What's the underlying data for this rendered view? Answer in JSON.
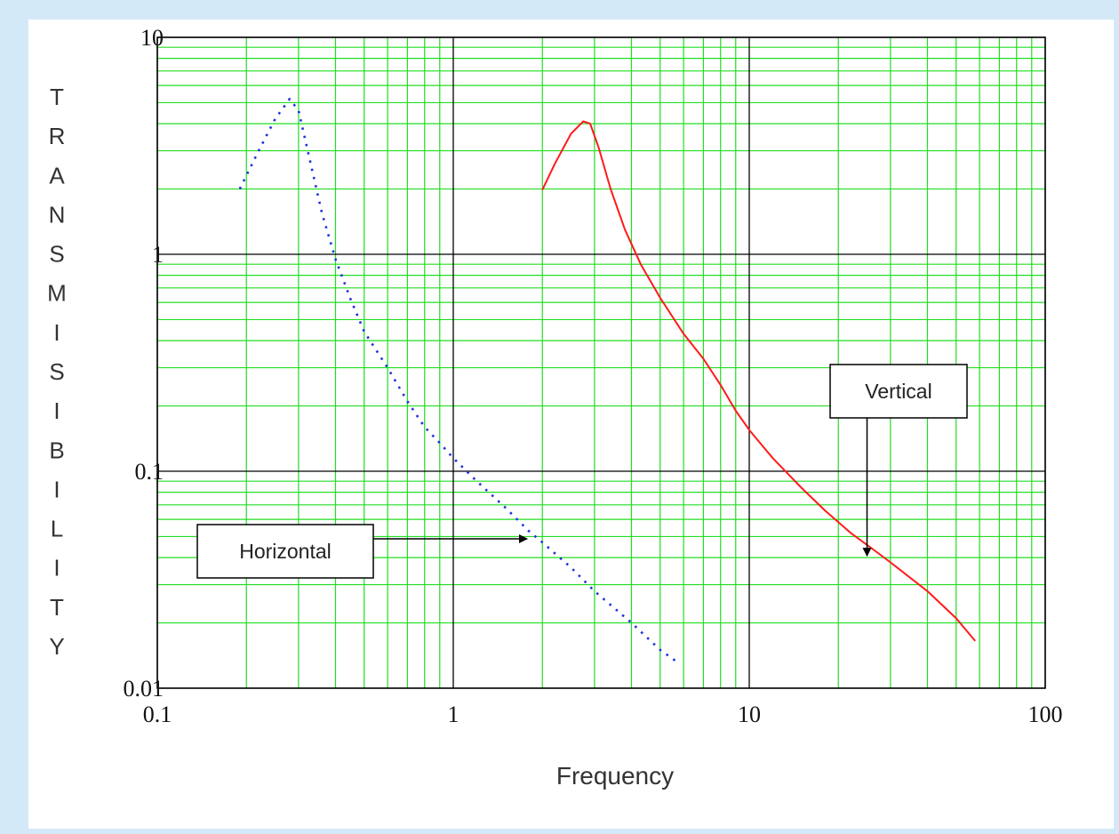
{
  "chart_data": {
    "type": "line",
    "xscale": "log",
    "yscale": "log",
    "xlim": [
      0.1,
      100
    ],
    "ylim": [
      0.01,
      10
    ],
    "x_ticks": [
      "0.1",
      "1",
      "10",
      "100"
    ],
    "y_ticks": [
      "10",
      "1",
      "0.1",
      "0.01"
    ],
    "xlabel": "Frequency",
    "ylabel": "TRANSMISIBILITY",
    "grid": true,
    "colors": {
      "minor_grid": "#22dd22",
      "major_grid": "#000000",
      "horizontal": "#1f2fe0",
      "vertical": "#ff1a1a",
      "background": "#d4e9f8"
    },
    "series": [
      {
        "name": "Horizontal",
        "style": "dotted",
        "x": [
          0.19,
          0.22,
          0.25,
          0.28,
          0.3,
          0.33,
          0.36,
          0.4,
          0.45,
          0.5,
          0.6,
          0.7,
          0.8,
          0.9,
          1.0,
          1.2,
          1.5,
          1.8,
          2.0,
          2.5,
          3.0,
          4.0,
          5.0,
          5.8
        ],
        "y": [
          2.0,
          3.0,
          4.2,
          5.2,
          4.6,
          2.6,
          1.55,
          0.95,
          0.62,
          0.44,
          0.3,
          0.21,
          0.16,
          0.135,
          0.115,
          0.09,
          0.068,
          0.053,
          0.047,
          0.036,
          0.028,
          0.02,
          0.015,
          0.013
        ]
      },
      {
        "name": "Vertical",
        "style": "solid",
        "x": [
          2.0,
          2.2,
          2.5,
          2.75,
          2.9,
          3.1,
          3.4,
          3.8,
          4.3,
          5.0,
          6.0,
          7.0,
          8.0,
          9.0,
          10.0,
          12.0,
          15.0,
          18.0,
          22.0,
          26.0,
          30.0,
          40.0,
          50.0,
          58.0
        ],
        "y": [
          1.98,
          2.6,
          3.6,
          4.1,
          4.0,
          3.1,
          2.0,
          1.3,
          0.9,
          0.63,
          0.43,
          0.33,
          0.25,
          0.19,
          0.155,
          0.115,
          0.084,
          0.066,
          0.052,
          0.044,
          0.038,
          0.028,
          0.021,
          0.0165
        ]
      }
    ],
    "annotations": [
      {
        "text": "Horizontal",
        "arrow_to": [
          1.8,
          0.048
        ]
      },
      {
        "text": "Vertical",
        "arrow_to": [
          25.0,
          0.04
        ]
      }
    ]
  }
}
